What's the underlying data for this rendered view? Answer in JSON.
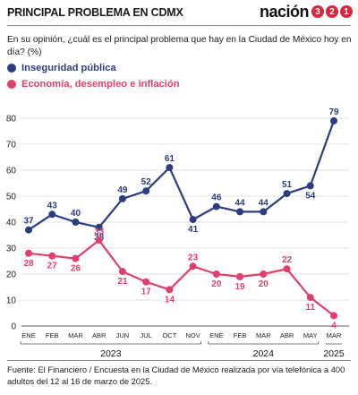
{
  "header": {
    "title": "PRINCIPAL PROBLEMA EN CDMX",
    "brand_word": "nación",
    "brand_digits": [
      "3",
      "2",
      "1"
    ]
  },
  "question": "En su opinión, ¿cuál es el principal problema que hay en la Ciudad de México hoy en día? (%)",
  "colors": {
    "series1": "#2b3d7e",
    "series2": "#e23e6c",
    "brand": "#d7263d"
  },
  "chart_data": {
    "type": "line",
    "categories": [
      "ENE",
      "FEB",
      "MAR",
      "ABR",
      "JUN",
      "JUL",
      "OCT",
      "NOV",
      "ENE",
      "FEB",
      "MAR",
      "ABR",
      "MAY",
      "MAR"
    ],
    "year_groups": [
      {
        "label": "2023",
        "start": 0,
        "end": 7
      },
      {
        "label": "2024",
        "start": 8,
        "end": 12
      },
      {
        "label": "2025",
        "start": 13,
        "end": 13
      }
    ],
    "series": [
      {
        "name": "Inseguridad pública",
        "values": [
          37,
          43,
          40,
          38,
          49,
          52,
          61,
          41,
          46,
          44,
          44,
          51,
          54,
          79
        ]
      },
      {
        "name": "Economía, desempleo e inflación",
        "values": [
          28,
          27,
          26,
          33,
          21,
          17,
          14,
          23,
          20,
          19,
          20,
          22,
          11,
          4
        ]
      }
    ],
    "yticks": [
      0,
      10,
      20,
      30,
      40,
      50,
      60,
      70,
      80
    ],
    "ylim": [
      0,
      85
    ],
    "grid": true
  },
  "source": "Fuente: El Financiero / Encuesta en la Ciudad de México realizada por vía telefónica a 400 adultos del 12 al 16 de marzo de 2025."
}
